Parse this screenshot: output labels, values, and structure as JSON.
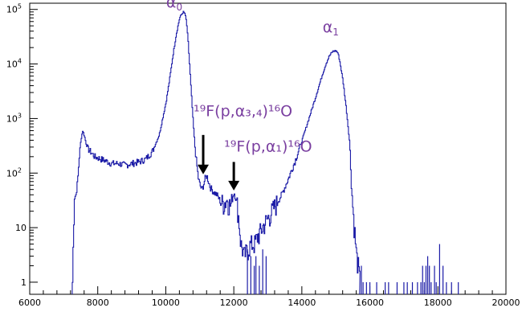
{
  "chart_data": {
    "type": "line",
    "title": "",
    "xlabel": "",
    "ylabel": "",
    "xlim": [
      6000,
      20000
    ],
    "ylim": [
      0.6,
      130000
    ],
    "yscale": "log",
    "grid": false,
    "legend": "none",
    "line_color": "#1a1aa6",
    "annotation_color": "#7a3fa0",
    "x_ticks": [
      6000,
      8000,
      10000,
      12000,
      14000,
      16000,
      18000,
      20000
    ],
    "x_tick_labels": [
      "6000",
      "8000",
      "10000",
      "12000",
      "14000",
      "16000",
      "18000",
      "20000"
    ],
    "y_ticks": [
      {
        "value": 1,
        "base": "1",
        "exp": ""
      },
      {
        "value": 10,
        "base": "10",
        "exp": ""
      },
      {
        "value": 100,
        "base": "10",
        "exp": "2"
      },
      {
        "value": 1000,
        "base": "10",
        "exp": "3"
      },
      {
        "value": 10000,
        "base": "10",
        "exp": "4"
      },
      {
        "value": 100000,
        "base": "10",
        "exp": "5"
      }
    ],
    "series": [
      {
        "x": [
          7250,
          7300,
          7350,
          7400,
          7450,
          7500,
          7550,
          7600,
          7650,
          7700,
          7800,
          7900,
          8000,
          8200,
          8400,
          8600,
          8800,
          9000,
          9200,
          9400,
          9600,
          9800,
          10000,
          10100,
          10200,
          10300,
          10400,
          10500,
          10550,
          10600,
          10650,
          10700,
          10750,
          10800,
          10850,
          10900,
          10950,
          11000,
          11050,
          11100,
          11150,
          11200,
          11250,
          11300,
          11400,
          11500,
          11600,
          11700,
          11800,
          11900,
          12000,
          12050,
          12100,
          12150,
          12200,
          12250,
          12300,
          12400,
          12500,
          12600,
          12700,
          12800,
          12900,
          13000,
          13200,
          13400,
          13600,
          13800,
          14000,
          14200,
          14400,
          14600,
          14700,
          14800,
          14900,
          15000,
          15050,
          15100,
          15200,
          15300,
          15400,
          15450,
          15500,
          15550,
          15600,
          15650,
          15700
        ],
        "y": [
          1,
          35,
          40,
          70,
          200,
          420,
          600,
          480,
          350,
          280,
          240,
          200,
          190,
          170,
          150,
          150,
          140,
          150,
          160,
          180,
          250,
          500,
          2000,
          5000,
          14000,
          35000,
          70000,
          90000,
          85000,
          60000,
          25000,
          8000,
          2500,
          800,
          300,
          150,
          80,
          60,
          50,
          60,
          80,
          90,
          70,
          55,
          45,
          40,
          30,
          28,
          32,
          25,
          45,
          35,
          25,
          12,
          5,
          4,
          3,
          4,
          5,
          5,
          7,
          9,
          12,
          15,
          25,
          40,
          80,
          170,
          400,
          1000,
          2500,
          6500,
          10000,
          14000,
          17000,
          17500,
          16000,
          12000,
          5000,
          1500,
          350,
          60,
          20,
          8,
          3,
          2,
          1
        ],
        "noise": [
          [
            12400,
            4
          ],
          [
            12500,
            3
          ],
          [
            12600,
            2
          ],
          [
            12650,
            3
          ],
          [
            12750,
            2
          ],
          [
            12850,
            4
          ],
          [
            12950,
            3
          ],
          [
            15750,
            2
          ],
          [
            15800,
            1
          ],
          [
            15900,
            1
          ],
          [
            16000,
            1
          ],
          [
            16200,
            1
          ],
          [
            16450,
            1
          ],
          [
            16550,
            1
          ],
          [
            16800,
            1
          ],
          [
            17000,
            1
          ],
          [
            17100,
            1
          ],
          [
            17250,
            1
          ],
          [
            17400,
            1
          ],
          [
            17500,
            1
          ],
          [
            17550,
            2
          ],
          [
            17600,
            1
          ],
          [
            17650,
            2
          ],
          [
            17700,
            3
          ],
          [
            17750,
            2
          ],
          [
            17800,
            1
          ],
          [
            17900,
            2
          ],
          [
            17950,
            1
          ],
          [
            18050,
            5
          ],
          [
            18150,
            2
          ],
          [
            18250,
            1
          ],
          [
            18400,
            1
          ],
          [
            18600,
            1
          ]
        ]
      }
    ],
    "annotations": [
      {
        "id": "alpha0",
        "text": "α",
        "sub": "0",
        "x": 10250,
        "y": 110000
      },
      {
        "id": "alpha1",
        "text": "α",
        "sub": "1",
        "x": 14850,
        "y": 38000
      },
      {
        "id": "reaction1",
        "label": "¹⁹F(p,α₃,₄)¹⁶O",
        "x": 11100,
        "y": 1100,
        "arrow_from": 500,
        "arrow_to": 95
      },
      {
        "id": "reaction2",
        "label": "¹⁹F(p,α₁)¹⁶O",
        "x": 12000,
        "y": 250,
        "arrow_from": 160,
        "arrow_to": 48
      }
    ]
  }
}
